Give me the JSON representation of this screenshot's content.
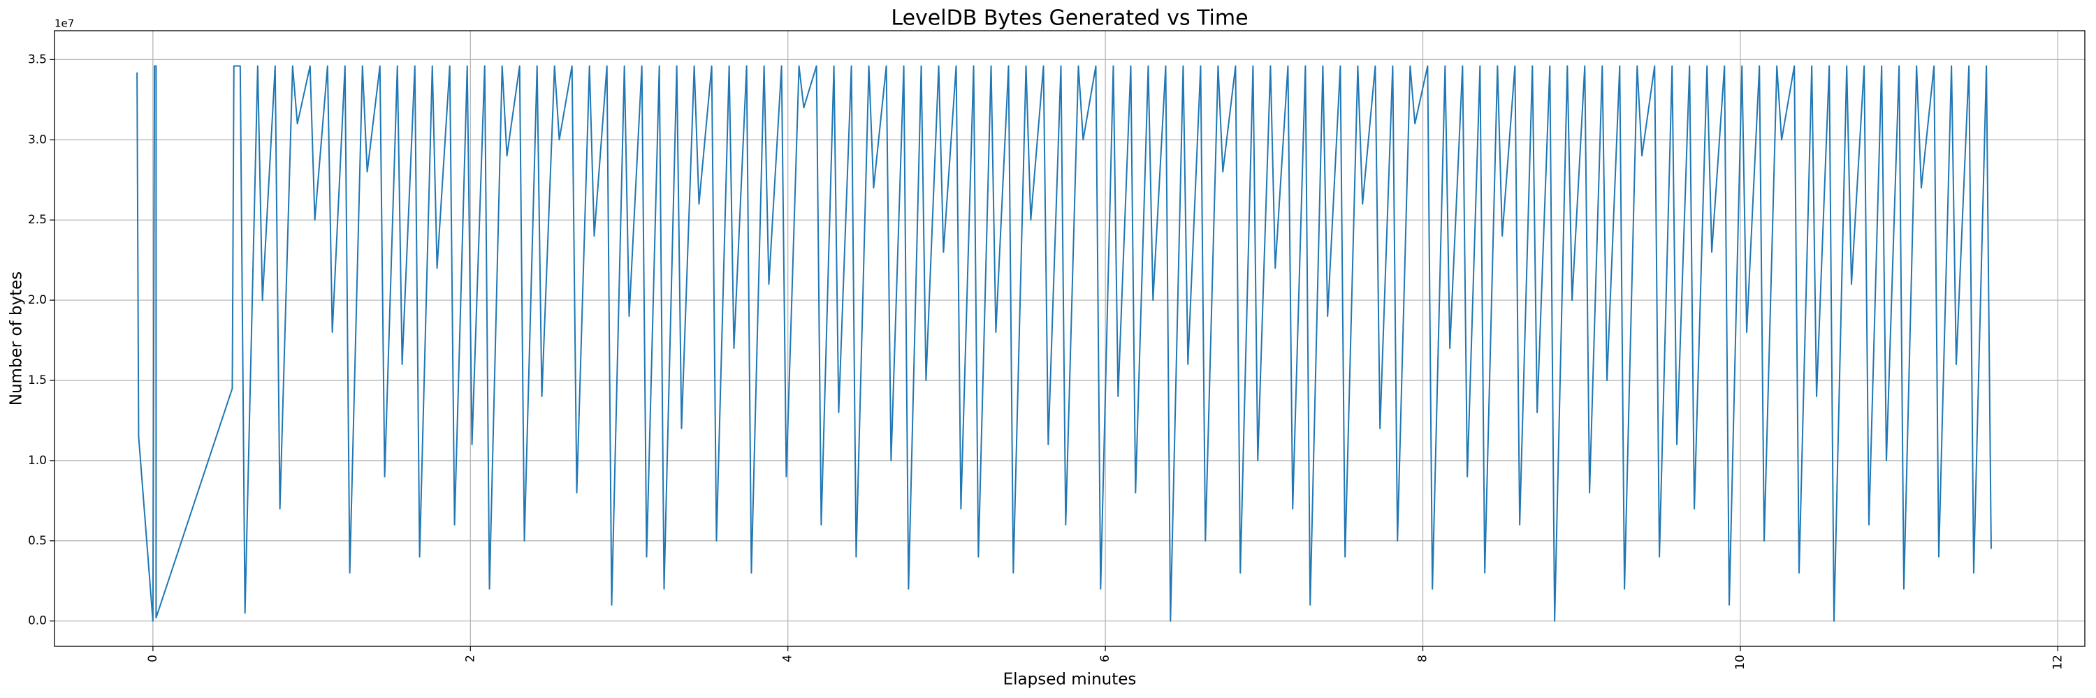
{
  "chart_data": {
    "type": "line",
    "title": "LevelDB Bytes Generated vs Time",
    "x_label": "Elapsed minutes",
    "y_label": "Number of bytes",
    "y_offset_label": "1e7",
    "color": "#1f77b4",
    "grid": true,
    "xlim": [
      -0.62,
      12.17
    ],
    "ylim": [
      -0.158,
      3.68
    ],
    "xticks": [
      0,
      2,
      4,
      6,
      8,
      10,
      12
    ],
    "yticks": [
      {
        "value": 0,
        "label": "0.0"
      },
      0.5,
      {
        "value": 1,
        "label": "1.0"
      },
      1.5,
      {
        "value": 2,
        "label": "2.0"
      },
      2.5,
      {
        "value": 3,
        "label": "3.0"
      },
      3.5
    ],
    "x": [
      -0.1,
      -0.09,
      0,
      0.01,
      0.02,
      0.02,
      0.5,
      0.51,
      0.55,
      0.58,
      0.66,
      0.69,
      0.77,
      0.8,
      0.88,
      0.91,
      0.99,
      1.02,
      1.1,
      1.13,
      1.21,
      1.24,
      1.32,
      1.35,
      1.43,
      1.46,
      1.54,
      1.57,
      1.65,
      1.68,
      1.76,
      1.79,
      1.87,
      1.9,
      1.98,
      2.01,
      2.09,
      2.12,
      2.2,
      2.23,
      2.31,
      2.34,
      2.42,
      2.45,
      2.53,
      2.56,
      2.64,
      2.67,
      2.75,
      2.78,
      2.86,
      2.89,
      2.97,
      3.0,
      3.08,
      3.11,
      3.19,
      3.22,
      3.3,
      3.33,
      3.41,
      3.44,
      3.52,
      3.55,
      3.63,
      3.66,
      3.74,
      3.77,
      3.85,
      3.88,
      3.96,
      3.99,
      4.07,
      4.1,
      4.18,
      4.21,
      4.29,
      4.32,
      4.4,
      4.43,
      4.51,
      4.54,
      4.62,
      4.65,
      4.73,
      4.76,
      4.84,
      4.87,
      4.95,
      4.98,
      5.06,
      5.09,
      5.17,
      5.2,
      5.28,
      5.31,
      5.39,
      5.42,
      5.5,
      5.53,
      5.61,
      5.64,
      5.72,
      5.75,
      5.83,
      5.86,
      5.94,
      5.97,
      6.05,
      6.08,
      6.16,
      6.19,
      6.27,
      6.3,
      6.38,
      6.41,
      6.49,
      6.52,
      6.6,
      6.63,
      6.71,
      6.74,
      6.82,
      6.85,
      6.93,
      6.96,
      7.04,
      7.07,
      7.15,
      7.18,
      7.26,
      7.29,
      7.37,
      7.4,
      7.48,
      7.51,
      7.59,
      7.62,
      7.7,
      7.73,
      7.81,
      7.84,
      7.92,
      7.95,
      8.03,
      8.06,
      8.14,
      8.17,
      8.25,
      8.28,
      8.36,
      8.39,
      8.47,
      8.5,
      8.58,
      8.61,
      8.69,
      8.72,
      8.8,
      8.83,
      8.91,
      8.94,
      9.02,
      9.05,
      9.13,
      9.16,
      9.24,
      9.27,
      9.35,
      9.38,
      9.46,
      9.49,
      9.57,
      9.6,
      9.68,
      9.71,
      9.79,
      9.82,
      9.9,
      9.93,
      10.01,
      10.04,
      10.12,
      10.15,
      10.23,
      10.26,
      10.34,
      10.37,
      10.45,
      10.48,
      10.56,
      10.59,
      10.67,
      10.7,
      10.78,
      10.81,
      10.89,
      10.92,
      11.0,
      11.03,
      11.11,
      11.14,
      11.22,
      11.25,
      11.33,
      11.36,
      11.44,
      11.47,
      11.55,
      11.58
    ],
    "values": [
      3.42,
      1.15,
      0,
      3.46,
      3.46,
      0.02,
      1.45,
      3.46,
      3.46,
      0.05,
      3.46,
      2.0,
      3.46,
      0.7,
      3.46,
      3.1,
      3.46,
      2.5,
      3.46,
      1.8,
      3.46,
      0.3,
      3.46,
      2.8,
      3.46,
      0.9,
      3.46,
      1.6,
      3.46,
      0.4,
      3.46,
      2.2,
      3.46,
      0.6,
      3.46,
      1.1,
      3.46,
      0.2,
      3.46,
      2.9,
      3.46,
      0.5,
      3.46,
      1.4,
      3.46,
      3.0,
      3.46,
      0.8,
      3.46,
      2.4,
      3.46,
      0.1,
      3.46,
      1.9,
      3.46,
      0.4,
      3.46,
      0.2,
      3.46,
      1.2,
      3.46,
      2.6,
      3.46,
      0.5,
      3.46,
      1.7,
      3.46,
      0.3,
      3.46,
      2.1,
      3.46,
      0.9,
      3.46,
      3.2,
      3.46,
      0.6,
      3.46,
      1.3,
      3.46,
      0.4,
      3.46,
      2.7,
      3.46,
      1.0,
      3.46,
      0.2,
      3.46,
      1.5,
      3.46,
      2.3,
      3.46,
      0.7,
      3.46,
      0.4,
      3.46,
      1.8,
      3.46,
      0.3,
      3.46,
      2.5,
      3.46,
      1.1,
      3.46,
      0.6,
      3.46,
      3.0,
      3.46,
      0.2,
      3.46,
      1.4,
      3.46,
      0.8,
      3.46,
      2.0,
      3.46,
      0.0,
      3.46,
      1.6,
      3.46,
      0.5,
      3.46,
      2.8,
      3.46,
      0.3,
      3.46,
      1.0,
      3.46,
      2.2,
      3.46,
      0.7,
      3.46,
      0.1,
      3.46,
      1.9,
      3.46,
      0.4,
      3.46,
      2.6,
      3.46,
      1.2,
      3.46,
      0.5,
      3.46,
      3.1,
      3.46,
      0.2,
      3.46,
      1.7,
      3.46,
      0.9,
      3.46,
      0.3,
      3.46,
      2.4,
      3.46,
      0.6,
      3.46,
      1.3,
      3.46,
      0.0,
      3.46,
      2.0,
      3.46,
      0.8,
      3.46,
      1.5,
      3.46,
      0.2,
      3.46,
      2.9,
      3.46,
      0.4,
      3.46,
      1.1,
      3.46,
      0.7,
      3.46,
      2.3,
      3.46,
      0.1,
      3.46,
      1.8,
      3.46,
      0.5,
      3.46,
      3.0,
      3.46,
      0.3,
      3.46,
      1.4,
      3.46,
      0.0,
      3.46,
      2.1,
      3.46,
      0.6,
      3.46,
      1.0,
      3.46,
      0.2,
      3.46,
      2.7,
      3.46,
      0.4,
      3.46,
      1.6,
      3.46,
      0.3,
      3.46,
      0.45
    ]
  }
}
